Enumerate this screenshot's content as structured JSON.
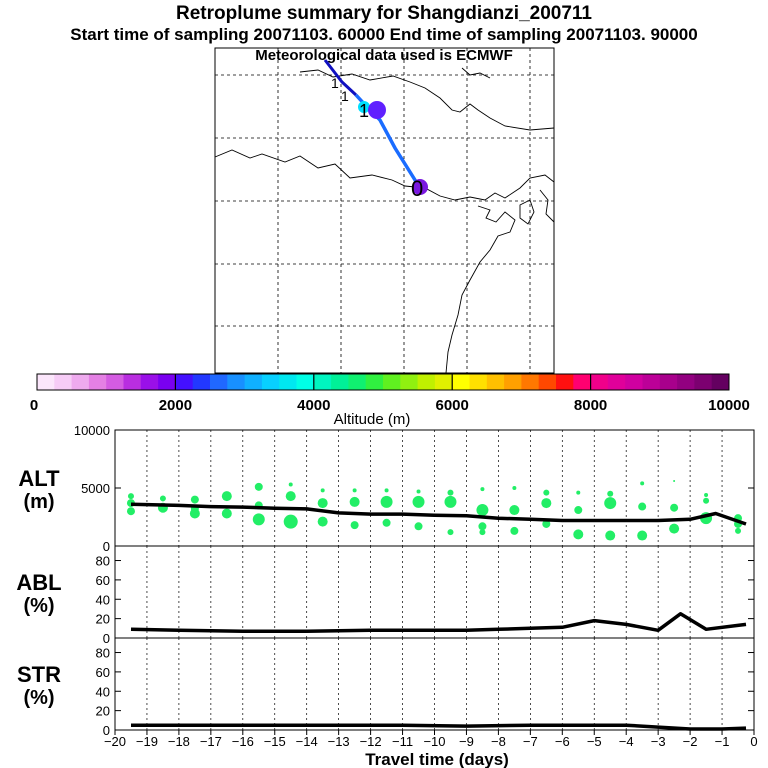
{
  "header": {
    "title": "Retroplume summary for Shangdianzi_200711",
    "subtitle": "Start time of sampling 20071103. 60000     End time of sampling 20071103. 90000",
    "met_line": "Meteorological data used is ECMWF"
  },
  "colors": {
    "trajectory": "#1a6cff",
    "trajectory_dark": "#1010c0",
    "plume_dot": "#22ee66",
    "line": "#000000",
    "marker_cyan": "#00e0ff",
    "marker_violet": "#6020ff",
    "marker_purple": "#7a18e0"
  },
  "map": {
    "day_labels": [
      "1",
      "1",
      "1",
      "0"
    ],
    "gridlines": "dashed"
  },
  "colorbar": {
    "title": "Altitude (m)",
    "ticks": [
      "0",
      "2000",
      "4000",
      "6000",
      "8000",
      "10000"
    ],
    "min": 0,
    "max": 10000,
    "bins": [
      "#fbe6fb",
      "#f6ccf6",
      "#eeaaee",
      "#e480e4",
      "#d45ce2",
      "#b92ee0",
      "#9a10e8",
      "#7a00f0",
      "#4410ff",
      "#2238ff",
      "#2068ff",
      "#1890ff",
      "#10b0ff",
      "#08d0ff",
      "#00e8f0",
      "#00ffe6",
      "#00f5c0",
      "#00f098",
      "#10f070",
      "#30f040",
      "#60f020",
      "#90f010",
      "#c0f000",
      "#e0f000",
      "#ffff00",
      "#ffe000",
      "#ffc000",
      "#ffa000",
      "#ff7800",
      "#ff4800",
      "#ff1010",
      "#ff0070",
      "#f0008a",
      "#e0009a",
      "#d000a0",
      "#bc0098",
      "#a8008c",
      "#920080",
      "#7c0070",
      "#640060"
    ]
  },
  "chart_data": {
    "type": "line",
    "x": [
      -19.5,
      -19,
      -18,
      -17,
      -16,
      -15,
      -14,
      -13,
      -12,
      -11,
      -10,
      -9,
      -8,
      -7,
      -6,
      -5,
      -4,
      -3,
      -2,
      -1,
      -0.25
    ],
    "x_ticks": [
      "−20",
      "−19",
      "−18",
      "−17",
      "−16",
      "−15",
      "−14",
      "−13",
      "−12",
      "−11",
      "−10",
      "−9",
      "−8",
      "−7",
      "−6",
      "−5",
      "−4",
      "−3",
      "−2",
      "−1",
      "0"
    ],
    "xlabel": "Travel time (days)",
    "xlim": [
      -20,
      0
    ],
    "panels": [
      {
        "name": "altitude",
        "label": "ALT",
        "unit": "(m)",
        "ylim": [
          0,
          10000
        ],
        "y_ticks": [
          "0",
          "5000",
          "10000"
        ],
        "series": [
          {
            "name": "mean altitude",
            "x": [
              -19.5,
              -18,
              -17,
              -16,
              -15,
              -14,
              -13,
              -12,
              -11,
              -10,
              -9,
              -8,
              -7,
              -6,
              -5,
              -4,
              -3,
              -2,
              -1.2,
              -0.25
            ],
            "values": [
              3600,
              3500,
              3400,
              3350,
              3250,
              3200,
              2850,
              2750,
              2750,
              2650,
              2600,
              2400,
              2300,
              2200,
              2200,
              2200,
              2200,
              2300,
              2800,
              1900
            ]
          },
          {
            "name": "plume clusters",
            "type": "scatter",
            "points": [
              [
                -19.5,
                4300,
                3
              ],
              [
                -19.5,
                3700,
                4
              ],
              [
                -19.5,
                3000,
                4
              ],
              [
                -18.5,
                4100,
                3
              ],
              [
                -18.5,
                3300,
                5
              ],
              [
                -17.5,
                4000,
                4
              ],
              [
                -17.5,
                3200,
                4
              ],
              [
                -17.5,
                2800,
                5
              ],
              [
                -16.5,
                4300,
                5
              ],
              [
                -16.5,
                2800,
                5
              ],
              [
                -15.5,
                5100,
                4
              ],
              [
                -15.5,
                3500,
                4
              ],
              [
                -15.5,
                2300,
                6
              ],
              [
                -14.5,
                5300,
                2
              ],
              [
                -14.5,
                4300,
                5
              ],
              [
                -14.5,
                2100,
                7
              ],
              [
                -13.5,
                4800,
                2
              ],
              [
                -13.5,
                3700,
                5
              ],
              [
                -13.5,
                2100,
                5
              ],
              [
                -12.5,
                4800,
                2
              ],
              [
                -12.5,
                3800,
                5
              ],
              [
                -12.5,
                1800,
                4
              ],
              [
                -11.5,
                4800,
                2
              ],
              [
                -11.5,
                3800,
                6
              ],
              [
                -11.5,
                2000,
                4
              ],
              [
                -10.5,
                4700,
                2
              ],
              [
                -10.5,
                3800,
                6
              ],
              [
                -10.5,
                1700,
                4
              ],
              [
                -9.5,
                4600,
                3
              ],
              [
                -9.5,
                3800,
                6
              ],
              [
                -9.5,
                1200,
                3
              ],
              [
                -8.5,
                4900,
                2
              ],
              [
                -8.5,
                3100,
                6
              ],
              [
                -8.5,
                1700,
                4
              ],
              [
                -8.5,
                1200,
                3
              ],
              [
                -7.5,
                5000,
                2
              ],
              [
                -7.5,
                3100,
                5
              ],
              [
                -7.5,
                1300,
                4
              ],
              [
                -6.5,
                4600,
                3
              ],
              [
                -6.5,
                3700,
                5
              ],
              [
                -6.5,
                1900,
                4
              ],
              [
                -5.5,
                4600,
                2
              ],
              [
                -5.5,
                3100,
                4
              ],
              [
                -5.5,
                1000,
                5
              ],
              [
                -4.5,
                4500,
                3
              ],
              [
                -4.5,
                3700,
                6
              ],
              [
                -4.5,
                900,
                5
              ],
              [
                -3.5,
                5400,
                2
              ],
              [
                -3.5,
                3400,
                4
              ],
              [
                -3.5,
                900,
                5
              ],
              [
                -2.5,
                5600,
                1
              ],
              [
                -2.5,
                3300,
                4
              ],
              [
                -2.5,
                1500,
                5
              ],
              [
                -1.5,
                4400,
                2
              ],
              [
                -1.5,
                3900,
                3
              ],
              [
                -1.5,
                2400,
                6
              ],
              [
                -0.5,
                2400,
                4
              ],
              [
                -0.5,
                1900,
                4
              ],
              [
                -0.5,
                1300,
                3
              ]
            ]
          }
        ]
      },
      {
        "name": "abl",
        "label": "ABL",
        "unit": "(%)",
        "ylim": [
          0,
          95
        ],
        "y_ticks": [
          "0",
          "20",
          "40",
          "60",
          "80"
        ],
        "series": [
          {
            "name": "ABL fraction",
            "x": [
              -19.5,
              -18,
              -16,
              -14,
              -12,
              -10,
              -9,
              -8,
              -7,
              -6,
              -5,
              -4,
              -3,
              -2.3,
              -1.5,
              -0.25
            ],
            "values": [
              9,
              8,
              7,
              7,
              8,
              8,
              8,
              9,
              10,
              11,
              18,
              14,
              8,
              25,
              9,
              14
            ]
          }
        ]
      },
      {
        "name": "stratosphere",
        "label": "STR",
        "unit": "(%)",
        "ylim": [
          0,
          95
        ],
        "y_ticks": [
          "0",
          "20",
          "40",
          "60",
          "80"
        ],
        "series": [
          {
            "name": "STR fraction",
            "x": [
              -19.5,
              -17,
              -15,
              -13,
              -11,
              -9,
              -7,
              -5,
              -4,
              -3,
              -2,
              -1,
              -0.25
            ],
            "values": [
              5,
              5,
              5,
              5,
              5,
              4,
              5,
              5,
              5,
              3,
              1,
              1,
              2
            ]
          }
        ]
      }
    ]
  }
}
